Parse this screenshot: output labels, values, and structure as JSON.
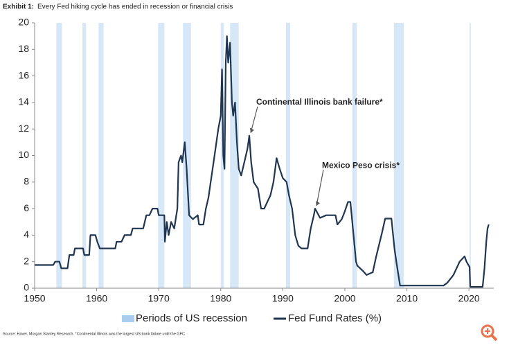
{
  "chart_data": {
    "type": "line",
    "title": "Exhibit 1:",
    "subtitle": "Every Fed hiking cycle has ended in recession or financial crisis",
    "source": "Source: Haver, Morgan Stanley Research. *Continental Illinois was the largest US bank failure until the GFC",
    "xlim": [
      1950,
      2024
    ],
    "xticks": [
      1950,
      1960,
      1970,
      1980,
      1990,
      2000,
      2010,
      2020
    ],
    "ylim": [
      0,
      20
    ],
    "yticks": [
      0,
      2,
      4,
      6,
      8,
      10,
      12,
      14,
      16,
      18,
      20
    ],
    "recessions": {
      "name": "Periods of US recession",
      "color": "#d6e8f7",
      "periods": [
        [
          1953.5,
          1954.4
        ],
        [
          1957.7,
          1958.3
        ],
        [
          1960.3,
          1961.1
        ],
        [
          1969.9,
          1970.9
        ],
        [
          1973.9,
          1975.2
        ],
        [
          1980.0,
          1980.5
        ],
        [
          1981.5,
          1982.9
        ],
        [
          1990.5,
          1991.2
        ],
        [
          2001.2,
          2001.9
        ],
        [
          2007.9,
          2009.5
        ],
        [
          2020.1,
          2020.3
        ]
      ]
    },
    "series": [
      {
        "name": "Fed Fund Rates (%)",
        "color": "#1f3550",
        "x": [
          1950,
          1953,
          1953.3,
          1954,
          1954.3,
          1955.3,
          1955.6,
          1956.3,
          1956.5,
          1957.8,
          1958,
          1958.8,
          1959,
          1959.8,
          1960.1,
          1960.5,
          1963,
          1963.2,
          1964,
          1964.5,
          1965.5,
          1965.8,
          1967.5,
          1968,
          1968.5,
          1969,
          1969.8,
          1970,
          1970.9,
          1971,
          1971.3,
          1971.6,
          1972,
          1972.5,
          1973,
          1973.2,
          1973.6,
          1973.8,
          1974.2,
          1974.5,
          1974.9,
          1975.5,
          1976.3,
          1976.5,
          1977.2,
          1977.6,
          1978,
          1979,
          1979.6,
          1980,
          1980.2,
          1980.4,
          1980.6,
          1980.8,
          1981,
          1981.2,
          1981.5,
          1981.8,
          1982,
          1982.3,
          1982.6,
          1982.9,
          1983.3,
          1983.8,
          1984.3,
          1984.6,
          1984.9,
          1985.3,
          1986,
          1986.5,
          1987,
          1987.5,
          1988,
          1988.5,
          1989,
          1989.5,
          1990,
          1990.6,
          1991,
          1991.5,
          1992,
          1992.5,
          1993,
          1994,
          1994.5,
          1995,
          1995.2,
          1996,
          1997,
          1998.5,
          1998.8,
          1999.5,
          2000,
          2000.5,
          2000.9,
          2001.2,
          2001.8,
          2002,
          2002.9,
          2003.5,
          2004.5,
          2005,
          2006,
          2006.5,
          2007.5,
          2008,
          2008.3,
          2008.9,
          2015.9,
          2016.5,
          2017.5,
          2018.5,
          2019.3,
          2019.6,
          2020.1,
          2020.2,
          2022.2,
          2022.5,
          2022.8,
          2023,
          2023.2
        ],
        "values": [
          1.75,
          1.75,
          2,
          2,
          1.5,
          1.5,
          2.5,
          2.5,
          3,
          3,
          2.5,
          2.5,
          4,
          4,
          3.5,
          3,
          3,
          3.5,
          3.5,
          4,
          4,
          4.5,
          4.5,
          5.5,
          5.5,
          6,
          6,
          5.5,
          5.5,
          3.5,
          5,
          4,
          5,
          4.5,
          6,
          9.5,
          10,
          9.5,
          11,
          9,
          5.5,
          5.2,
          5.5,
          4.8,
          4.8,
          6,
          6.8,
          10,
          12,
          13,
          16.5,
          10,
          9,
          17,
          19,
          17,
          18.5,
          14,
          13,
          14,
          11,
          9,
          8.5,
          9.5,
          10.5,
          11.5,
          9.5,
          8,
          7.5,
          6,
          6,
          6.5,
          7,
          8,
          9.8,
          9,
          8.3,
          8,
          7,
          6,
          4,
          3.2,
          3,
          3,
          4.5,
          5.5,
          6,
          5.3,
          5.5,
          5.5,
          4.8,
          5.2,
          5.8,
          6.5,
          6.5,
          5,
          2,
          1.7,
          1.3,
          1,
          1.2,
          2.3,
          4.2,
          5.25,
          5.25,
          3,
          2,
          0.2,
          0.2,
          0.4,
          1,
          2,
          2.4,
          2,
          1.6,
          0.1,
          0.1,
          1.5,
          3.5,
          4.5,
          4.8
        ]
      }
    ],
    "annotations": [
      {
        "text": "Continental Illinois bank failure*",
        "x": 1984.6,
        "y": 11.5
      },
      {
        "text": "Mexico Peso crisis*",
        "x": 1995.2,
        "y": 6
      }
    ]
  }
}
